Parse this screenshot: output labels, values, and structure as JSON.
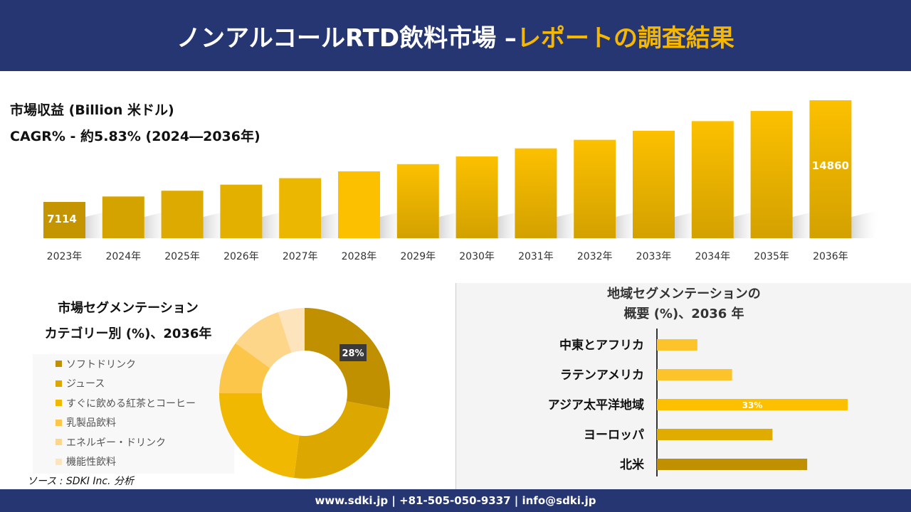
{
  "header": {
    "title_main": "ノンアルコールRTD飲料市場 –",
    "title_highlight": "レポートの調査結果"
  },
  "footer": {
    "text": "www.sdki.jp | +81-505-050-9337 | info@sdki.jp"
  },
  "colors": {
    "navy": "#263673",
    "gold": "#fcc000",
    "dark_gold": "#c49500"
  },
  "chart_data": [
    {
      "type": "bar",
      "title": "市場収益 (Billion 米ドル)",
      "subtitle": "CAGR% - 約5.83% (2024―2036年)",
      "categories": [
        "2023年",
        "2024年",
        "2025年",
        "2026年",
        "2027年",
        "2028年",
        "2029年",
        "2030年",
        "2031年",
        "2032年",
        "2033年",
        "2034年",
        "2035年",
        "2036年"
      ],
      "values": [
        7114,
        7529,
        7968,
        8432,
        8924,
        9444,
        9995,
        10578,
        11195,
        11847,
        12538,
        13269,
        14043,
        14860
      ],
      "data_labels": {
        "0": "7114",
        "13": "14860"
      },
      "grid": false
    },
    {
      "type": "pie",
      "donut": true,
      "title": "市場セグメンテーション カテゴリー別 (%)、2036年",
      "title_line1": "市場セグメンテーション",
      "title_line2": "カテゴリー別 (%)、2036年",
      "labels": [
        "ソフトドリンク",
        "ジュース",
        "すぐに飲める紅茶とコーヒー",
        "乳製品飲料",
        "エネルギー・ドリンク",
        "機能性飲料"
      ],
      "values": [
        28,
        24,
        23,
        10,
        10,
        5
      ],
      "colors": [
        "#c09000",
        "#dca800",
        "#f0b800",
        "#fcc64a",
        "#fdd68a",
        "#fee4bc"
      ],
      "data_labels": {
        "0": "28%"
      },
      "legend": "left"
    },
    {
      "type": "bar",
      "orientation": "horizontal",
      "title_line1": "地域セグメンテーションの",
      "title_line2": "概要 (%)、2036 年",
      "categories": [
        "中東とアフリカ",
        "ラテンアメリカ",
        "アジア太平洋地域",
        "ヨーロッパ",
        "北米"
      ],
      "values": [
        7,
        13,
        33,
        20,
        26
      ],
      "colors": [
        "#fcc42a",
        "#fcc42a",
        "#fcc000",
        "#e0ac00",
        "#c09000"
      ],
      "data_labels": {
        "2": "33%"
      }
    }
  ],
  "source": "ソース : SDKI Inc. 分析"
}
